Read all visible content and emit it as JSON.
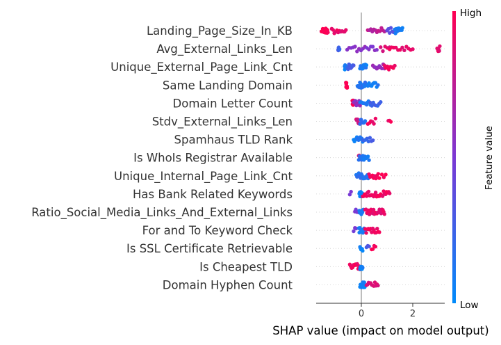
{
  "chart_data": {
    "type": "scatter",
    "subtype": "shap-beeswarm",
    "xlabel": "SHAP value (impact on model output)",
    "xticks": [
      0,
      2
    ],
    "xlim": [
      -1.75,
      3.2
    ],
    "colorbar": {
      "label": "Feature value",
      "high": "High",
      "low": "Low",
      "high_color": "#ff0052",
      "low_color": "#008bfb"
    },
    "features": [
      {
        "name": "Landing_Page_Size_In_KB",
        "clusters": [
          {
            "from": -1.55,
            "to": -1.3,
            "n": 16,
            "c": 1.0
          },
          {
            "from": -1.15,
            "to": -0.6,
            "n": 12,
            "c": 0.92
          },
          {
            "from": 0.25,
            "to": 0.9,
            "n": 12,
            "c": 0.75
          },
          {
            "from": 1.0,
            "to": 1.25,
            "n": 6,
            "c": 0.35
          },
          {
            "from": 1.3,
            "to": 1.6,
            "n": 12,
            "c": 0.08
          }
        ]
      },
      {
        "name": "Avg_External_Links_Len",
        "clusters": [
          {
            "from": -0.9,
            "to": -0.85,
            "n": 10,
            "c": 0.25
          },
          {
            "from": -0.55,
            "to": 0.6,
            "n": 16,
            "c": 0.55
          },
          {
            "from": 0.75,
            "to": 1.1,
            "n": 5,
            "c": 0.85
          },
          {
            "from": 1.1,
            "to": 2.0,
            "n": 12,
            "c": 0.92
          },
          {
            "from": 2.95,
            "to": 3.05,
            "n": 6,
            "c": 0.9
          }
        ]
      },
      {
        "name": "Unique_External_Page_Link_Cnt",
        "clusters": [
          {
            "from": -0.65,
            "to": -0.6,
            "n": 10,
            "c": 0.05
          },
          {
            "from": -0.55,
            "to": -0.3,
            "n": 8,
            "c": 0.25
          },
          {
            "from": -0.05,
            "to": 0.2,
            "n": 12,
            "c": 0.1
          },
          {
            "from": 0.45,
            "to": 0.9,
            "n": 10,
            "c": 0.6
          },
          {
            "from": 0.9,
            "to": 1.3,
            "n": 8,
            "c": 0.95
          }
        ]
      },
      {
        "name": "Same Landing Domain",
        "clusters": [
          {
            "from": -0.6,
            "to": -0.55,
            "n": 8,
            "c": 1.0
          },
          {
            "from": -0.15,
            "to": 0.15,
            "n": 14,
            "c": 0.15
          },
          {
            "from": 0.2,
            "to": 0.65,
            "n": 10,
            "c": 0.1
          }
        ]
      },
      {
        "name": "Domain Letter Count",
        "clusters": [
          {
            "from": -0.35,
            "to": -0.3,
            "n": 8,
            "c": 1.0
          },
          {
            "from": -0.3,
            "to": -0.05,
            "n": 8,
            "c": 0.6
          },
          {
            "from": -0.05,
            "to": 0.35,
            "n": 12,
            "c": 0.1
          },
          {
            "from": 0.35,
            "to": 0.75,
            "n": 8,
            "c": 0.25
          }
        ]
      },
      {
        "name": "Stdv_External_Links_Len",
        "clusters": [
          {
            "from": -0.2,
            "to": -0.1,
            "n": 6,
            "c": 0.85
          },
          {
            "from": -0.05,
            "to": 0.15,
            "n": 10,
            "c": 0.2
          },
          {
            "from": 0.25,
            "to": 0.55,
            "n": 6,
            "c": 0.95
          },
          {
            "from": 1.05,
            "to": 1.15,
            "n": 3,
            "c": 0.95
          }
        ]
      },
      {
        "name": "Spamhaus TLD Rank",
        "clusters": [
          {
            "from": -0.3,
            "to": 0.05,
            "n": 12,
            "c": 0.1
          },
          {
            "from": 0.05,
            "to": 0.45,
            "n": 8,
            "c": 0.25
          }
        ]
      },
      {
        "name": "Is WhoIs Registrar Available",
        "clusters": [
          {
            "from": -0.1,
            "to": -0.05,
            "n": 4,
            "c": 1.0
          },
          {
            "from": -0.1,
            "to": 0.1,
            "n": 10,
            "c": 0.15
          },
          {
            "from": 0.1,
            "to": 0.3,
            "n": 6,
            "c": 0.1
          }
        ]
      },
      {
        "name": "Unique_Internal_Page_Link_Cnt",
        "clusters": [
          {
            "from": -0.2,
            "to": 0.3,
            "n": 16,
            "c": 0.15
          },
          {
            "from": 0.3,
            "to": 0.7,
            "n": 10,
            "c": 0.95
          },
          {
            "from": 0.8,
            "to": 0.95,
            "n": 3,
            "c": 1.0
          }
        ]
      },
      {
        "name": "Has Bank Related Keywords",
        "clusters": [
          {
            "from": -0.45,
            "to": -0.4,
            "n": 2,
            "c": 0.5
          },
          {
            "from": -0.08,
            "to": 0.05,
            "n": 10,
            "c": 0.05
          },
          {
            "from": 0.05,
            "to": 1.1,
            "n": 28,
            "c": 0.95
          }
        ]
      },
      {
        "name": "Ratio_Social_Media_Links_And_External_Links",
        "clusters": [
          {
            "from": -0.25,
            "to": -0.1,
            "n": 5,
            "c": 0.5
          },
          {
            "from": -0.08,
            "to": 0.1,
            "n": 10,
            "c": 0.1
          },
          {
            "from": 0.15,
            "to": 0.9,
            "n": 24,
            "c": 0.92
          }
        ]
      },
      {
        "name": "For and To Keyword Check",
        "clusters": [
          {
            "from": -0.3,
            "to": -0.2,
            "n": 3,
            "c": 0.5
          },
          {
            "from": -0.1,
            "to": 0.15,
            "n": 12,
            "c": 0.1
          },
          {
            "from": 0.15,
            "to": 0.7,
            "n": 14,
            "c": 0.95
          }
        ]
      },
      {
        "name": "Is SSL Certificate Retrievable",
        "clusters": [
          {
            "from": -0.05,
            "to": 0.05,
            "n": 6,
            "c": 0.05
          },
          {
            "from": 0.2,
            "to": 0.3,
            "n": 3,
            "c": 0.3
          },
          {
            "from": 0.4,
            "to": 0.55,
            "n": 4,
            "c": 1.0
          }
        ]
      },
      {
        "name": "Is Cheapest TLD",
        "clusters": [
          {
            "from": -0.45,
            "to": -0.05,
            "n": 12,
            "c": 0.95
          },
          {
            "from": -0.05,
            "to": 0.05,
            "n": 10,
            "c": 0.05
          }
        ]
      },
      {
        "name": "Domain Hyphen Count",
        "clusters": [
          {
            "from": -0.05,
            "to": 0.15,
            "n": 12,
            "c": 0.05
          },
          {
            "from": 0.2,
            "to": 0.65,
            "n": 12,
            "c": 0.85
          }
        ]
      }
    ]
  }
}
